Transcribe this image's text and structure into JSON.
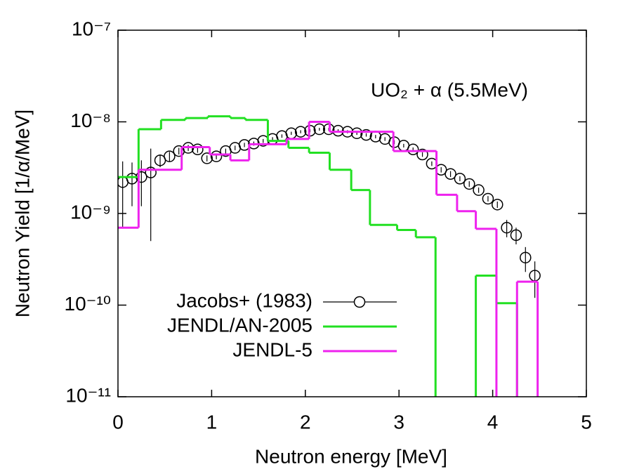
{
  "chart_data": {
    "type": "line",
    "xlabel": "Neutron energy [MeV]",
    "ylabel": "Neutron Yield [1/α/MeV]",
    "annotation": "UO₂ + α (5.5MeV)",
    "xlim": [
      0,
      5
    ],
    "xticks": [
      0,
      1,
      2,
      3,
      4,
      5
    ],
    "ylim": [
      1e-11,
      1e-07
    ],
    "log_y": true,
    "yticks": [
      {
        "value": 1e-11,
        "label": "10⁻¹¹"
      },
      {
        "value": 1e-10,
        "label": "10⁻¹⁰"
      },
      {
        "value": 1e-09,
        "label": "10⁻⁹"
      },
      {
        "value": 1e-08,
        "label": "10⁻⁸"
      },
      {
        "value": 1e-07,
        "label": "10⁻⁷"
      }
    ],
    "legend": "lower left",
    "series": [
      {
        "name": "Jacobs+ (1983)",
        "type": "scatter",
        "color": "#000000",
        "x": [
          0.05,
          0.15,
          0.25,
          0.35,
          0.45,
          0.55,
          0.65,
          0.75,
          0.85,
          0.95,
          1.05,
          1.15,
          1.25,
          1.35,
          1.45,
          1.55,
          1.65,
          1.75,
          1.85,
          1.95,
          2.05,
          2.15,
          2.25,
          2.35,
          2.45,
          2.55,
          2.65,
          2.75,
          2.85,
          2.95,
          3.05,
          3.15,
          3.25,
          3.35,
          3.45,
          3.55,
          3.65,
          3.75,
          3.85,
          3.95,
          4.05,
          4.15,
          4.25,
          4.35,
          4.45
        ],
        "values": [
          2.2e-09,
          2.4e-09,
          2.5e-09,
          2.8e-09,
          3.8e-09,
          4.2e-09,
          4.8e-09,
          5.2e-09,
          5e-09,
          4e-09,
          4.2e-09,
          4.8e-09,
          5.2e-09,
          5.6e-09,
          5.8e-09,
          6.2e-09,
          6.5e-09,
          7e-09,
          7.5e-09,
          7.8e-09,
          8e-09,
          8.3e-09,
          8.3e-09,
          8e-09,
          7.8e-09,
          7.5e-09,
          7.2e-09,
          6.9e-09,
          6.5e-09,
          6e-09,
          5.5e-09,
          5e-09,
          4.4e-09,
          3.5e-09,
          3e-09,
          2.7e-09,
          2.4e-09,
          2.1e-09,
          1.8e-09,
          1.45e-09,
          1.25e-09,
          7e-10,
          5.8e-10,
          3.3e-10,
          2.1e-10
        ],
        "errors": [
          1.5e-09,
          1.2e-09,
          1.3e-09,
          2.3e-09,
          6e-10,
          5e-10,
          4e-10,
          4e-10,
          4e-10,
          3e-10,
          3e-10,
          3e-10,
          3e-10,
          3e-10,
          3e-10,
          3e-10,
          3e-10,
          3e-10,
          3e-10,
          3e-10,
          3e-10,
          3e-10,
          3e-10,
          3e-10,
          3e-10,
          3e-10,
          3e-10,
          3e-10,
          3e-10,
          3e-10,
          2.5e-10,
          2.5e-10,
          2.5e-10,
          2e-10,
          2e-10,
          2e-10,
          1.5e-10,
          1.5e-10,
          1.2e-10,
          1e-10,
          1e-10,
          1.5e-10,
          1.2e-10,
          1e-10,
          9e-11
        ]
      },
      {
        "name": "JENDL/AN-2005",
        "type": "step",
        "color": "#22e022",
        "bins": [
          0,
          0.22,
          0.46,
          0.72,
          0.96,
          1.2,
          1.36,
          1.6,
          1.82,
          2.04,
          2.26,
          2.49,
          2.69,
          2.98,
          3.18,
          3.39,
          3.82,
          4.04,
          4.26
        ],
        "values": [
          2.5e-09,
          8.3e-09,
          1.05e-08,
          1.1e-08,
          1.15e-08,
          1.1e-08,
          1.05e-08,
          6.2e-09,
          5.2e-09,
          4.6e-09,
          3e-09,
          1.8e-09,
          7.5e-10,
          6.6e-10,
          5.5e-10,
          null,
          2.1e-10,
          1.05e-10
        ]
      },
      {
        "name": "JENDL-5",
        "type": "step",
        "color": "#ee22ee",
        "bins": [
          0,
          0.22,
          0.68,
          0.98,
          1.2,
          1.4,
          1.8,
          2.04,
          2.26,
          2.94,
          3.4,
          3.62,
          3.82,
          4.04,
          4.26,
          4.48
        ],
        "values": [
          7e-10,
          3e-09,
          5.3e-09,
          4.4e-09,
          3.8e-09,
          5.7e-09,
          6.5e-09,
          1e-08,
          7.8e-09,
          4.8e-09,
          1.6e-09,
          1.06e-09,
          6.8e-10,
          null,
          1.8e-10
        ]
      }
    ]
  }
}
